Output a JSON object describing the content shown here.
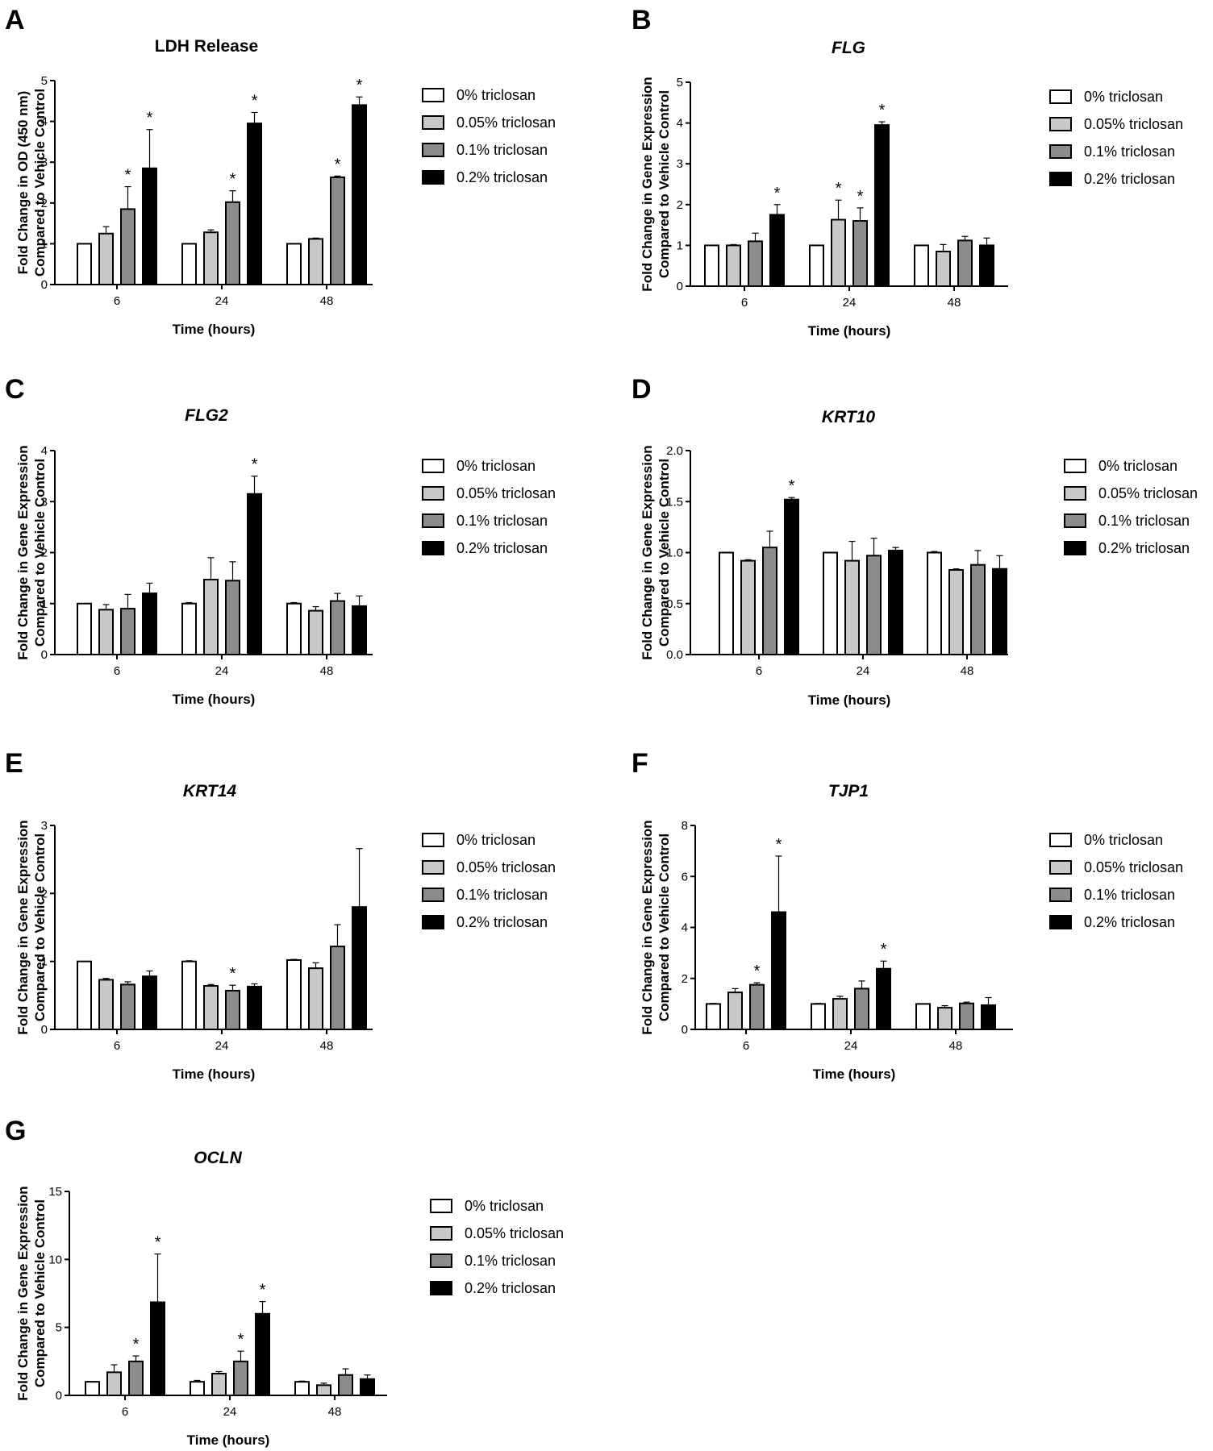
{
  "figure": {
    "legend_labels": [
      "0% triclosan",
      "0.05% triclosan",
      "0.1% triclosan",
      "0.2% triclosan"
    ],
    "series_colors": [
      "#ffffff",
      "#c8c8c8",
      "#8c8c8c",
      "#000000"
    ]
  },
  "chart_data": [
    {
      "panel": "A",
      "type": "bar",
      "title": "LDH Release",
      "title_italic": false,
      "xlabel": "Time (hours)",
      "ylabel": [
        "Fold Change in OD (450 nm)",
        "Compared to Vehicle Control"
      ],
      "categories": [
        "6",
        "24",
        "48"
      ],
      "ylim": [
        0,
        5
      ],
      "yticks": [
        0,
        1,
        2,
        3,
        4,
        5
      ],
      "series": [
        {
          "name": "0% triclosan",
          "values": [
            1.0,
            1.0,
            1.0
          ],
          "errors": [
            0,
            0,
            0
          ],
          "significant": [
            false,
            false,
            false
          ]
        },
        {
          "name": "0.05% triclosan",
          "values": [
            1.25,
            1.28,
            1.12
          ],
          "errors": [
            0.17,
            0.06,
            0.02
          ],
          "significant": [
            false,
            false,
            false
          ]
        },
        {
          "name": "0.1% triclosan",
          "values": [
            1.85,
            2.02,
            2.63
          ],
          "errors": [
            0.55,
            0.28,
            0.03
          ],
          "significant": [
            true,
            true,
            true
          ]
        },
        {
          "name": "0.2% triclosan",
          "values": [
            2.85,
            3.95,
            4.4
          ],
          "errors": [
            0.95,
            0.27,
            0.2
          ],
          "significant": [
            true,
            true,
            true
          ]
        }
      ]
    },
    {
      "panel": "B",
      "type": "bar",
      "title": "FLG",
      "title_italic": true,
      "xlabel": "Time (hours)",
      "ylabel": [
        "Fold Change in Gene Expression",
        "Compared to Vehicle Control"
      ],
      "categories": [
        "6",
        "24",
        "48"
      ],
      "ylim": [
        0,
        5
      ],
      "yticks": [
        0,
        1,
        2,
        3,
        4,
        5
      ],
      "series": [
        {
          "name": "0% triclosan",
          "values": [
            1.0,
            1.0,
            1.0
          ],
          "errors": [
            0,
            0,
            0
          ],
          "significant": [
            false,
            false,
            false
          ]
        },
        {
          "name": "0.05% triclosan",
          "values": [
            1.0,
            1.63,
            0.85
          ],
          "errors": [
            0.02,
            0.48,
            0.17
          ],
          "significant": [
            false,
            true,
            false
          ]
        },
        {
          "name": "0.1% triclosan",
          "values": [
            1.1,
            1.6,
            1.12
          ],
          "errors": [
            0.2,
            0.32,
            0.1
          ],
          "significant": [
            false,
            true,
            false
          ]
        },
        {
          "name": "0.2% triclosan",
          "values": [
            1.75,
            3.95,
            1.0
          ],
          "errors": [
            0.25,
            0.08,
            0.18
          ],
          "significant": [
            true,
            true,
            false
          ]
        }
      ]
    },
    {
      "panel": "C",
      "type": "bar",
      "title": "FLG2",
      "title_italic": true,
      "xlabel": "Time (hours)",
      "ylabel": [
        "Fold Change in Gene Expression",
        "Compared to Vehicle Control"
      ],
      "categories": [
        "6",
        "24",
        "48"
      ],
      "ylim": [
        0,
        4
      ],
      "yticks": [
        0,
        1,
        2,
        3,
        4
      ],
      "series": [
        {
          "name": "0% triclosan",
          "values": [
            1.0,
            1.0,
            1.0
          ],
          "errors": [
            0,
            0.02,
            0.02
          ],
          "significant": [
            false,
            false,
            false
          ]
        },
        {
          "name": "0.05% triclosan",
          "values": [
            0.88,
            1.47,
            0.86
          ],
          "errors": [
            0.1,
            0.43,
            0.08
          ],
          "significant": [
            false,
            false,
            false
          ]
        },
        {
          "name": "0.1% triclosan",
          "values": [
            0.9,
            1.45,
            1.05
          ],
          "errors": [
            0.28,
            0.37,
            0.15
          ],
          "significant": [
            false,
            false,
            false
          ]
        },
        {
          "name": "0.2% triclosan",
          "values": [
            1.2,
            3.15,
            0.95
          ],
          "errors": [
            0.2,
            0.35,
            0.2
          ],
          "significant": [
            false,
            true,
            false
          ]
        }
      ]
    },
    {
      "panel": "D",
      "type": "bar",
      "title": "KRT10",
      "title_italic": true,
      "xlabel": "Time (hours)",
      "ylabel": [
        "Fold Change in Gene Expression",
        "Compared to Vehicle Control"
      ],
      "categories": [
        "6",
        "24",
        "48"
      ],
      "ylim": [
        0,
        2
      ],
      "yticks": [
        0.0,
        0.5,
        1.0,
        1.5,
        2.0
      ],
      "ytick_decimals": 1,
      "series": [
        {
          "name": "0% triclosan",
          "values": [
            1.0,
            1.0,
            1.0
          ],
          "errors": [
            0,
            0,
            0.01
          ],
          "significant": [
            false,
            false,
            false
          ]
        },
        {
          "name": "0.05% triclosan",
          "values": [
            0.92,
            0.92,
            0.83
          ],
          "errors": [
            0.01,
            0.19,
            0.01
          ],
          "significant": [
            false,
            false,
            false
          ]
        },
        {
          "name": "0.1% triclosan",
          "values": [
            1.05,
            0.97,
            0.88
          ],
          "errors": [
            0.16,
            0.17,
            0.14
          ],
          "significant": [
            false,
            false,
            false
          ]
        },
        {
          "name": "0.2% triclosan",
          "values": [
            1.52,
            1.02,
            0.84
          ],
          "errors": [
            0.02,
            0.03,
            0.13
          ],
          "significant": [
            true,
            false,
            false
          ]
        }
      ]
    },
    {
      "panel": "E",
      "type": "bar",
      "title": "KRT14",
      "title_italic": true,
      "xlabel": "Time (hours)",
      "ylabel": [
        "Fold Change in Gene Expression",
        "Compared to Vehicle Control"
      ],
      "categories": [
        "6",
        "24",
        "48"
      ],
      "ylim": [
        0,
        3
      ],
      "yticks": [
        0,
        1,
        2,
        3
      ],
      "series": [
        {
          "name": "0% triclosan",
          "values": [
            1.0,
            1.0,
            1.02
          ],
          "errors": [
            0,
            0.01,
            0.01
          ],
          "significant": [
            false,
            false,
            false
          ]
        },
        {
          "name": "0.05% triclosan",
          "values": [
            0.73,
            0.64,
            0.9
          ],
          "errors": [
            0.02,
            0.02,
            0.08
          ],
          "significant": [
            false,
            false,
            false
          ]
        },
        {
          "name": "0.1% triclosan",
          "values": [
            0.66,
            0.57,
            1.22
          ],
          "errors": [
            0.04,
            0.08,
            0.32
          ],
          "significant": [
            false,
            true,
            false
          ]
        },
        {
          "name": "0.2% triclosan",
          "values": [
            0.78,
            0.63,
            1.8
          ],
          "errors": [
            0.08,
            0.04,
            0.86
          ],
          "significant": [
            false,
            false,
            false
          ]
        }
      ]
    },
    {
      "panel": "F",
      "type": "bar",
      "title": "TJP1",
      "title_italic": true,
      "xlabel": "Time (hours)",
      "ylabel": [
        "Fold Change in Gene Expression",
        "Compared to Vehicle Control"
      ],
      "categories": [
        "6",
        "24",
        "48"
      ],
      "ylim": [
        0,
        8
      ],
      "yticks": [
        0,
        2,
        4,
        6,
        8
      ],
      "series": [
        {
          "name": "0% triclosan",
          "values": [
            1.0,
            1.0,
            1.0
          ],
          "errors": [
            0.02,
            0.02,
            0
          ],
          "significant": [
            false,
            false,
            false
          ]
        },
        {
          "name": "0.05% triclosan",
          "values": [
            1.45,
            1.2,
            0.85
          ],
          "errors": [
            0.15,
            0.1,
            0.08
          ],
          "significant": [
            false,
            false,
            false
          ]
        },
        {
          "name": "0.1% triclosan",
          "values": [
            1.75,
            1.6,
            1.02
          ],
          "errors": [
            0.08,
            0.3,
            0.05
          ],
          "significant": [
            true,
            false,
            false
          ]
        },
        {
          "name": "0.2% triclosan",
          "values": [
            4.6,
            2.38,
            0.95
          ],
          "errors": [
            2.2,
            0.3,
            0.3
          ],
          "significant": [
            true,
            true,
            false
          ]
        }
      ]
    },
    {
      "panel": "G",
      "type": "bar",
      "title": "OCLN",
      "title_italic": true,
      "xlabel": "Time (hours)",
      "ylabel": [
        "Fold Change in Gene Expression",
        "Compared to Vehicle Control"
      ],
      "categories": [
        "6",
        "24",
        "48"
      ],
      "ylim": [
        0,
        15
      ],
      "yticks": [
        0,
        5,
        10,
        15
      ],
      "series": [
        {
          "name": "0% triclosan",
          "values": [
            1.0,
            1.0,
            1.0
          ],
          "errors": [
            0,
            0.1,
            0.05
          ],
          "significant": [
            false,
            false,
            false
          ]
        },
        {
          "name": "0.05% triclosan",
          "values": [
            1.7,
            1.6,
            0.75
          ],
          "errors": [
            0.55,
            0.15,
            0.15
          ],
          "significant": [
            false,
            false,
            false
          ]
        },
        {
          "name": "0.1% triclosan",
          "values": [
            2.5,
            2.5,
            1.5
          ],
          "errors": [
            0.4,
            0.75,
            0.45
          ],
          "significant": [
            true,
            true,
            false
          ]
        },
        {
          "name": "0.2% triclosan",
          "values": [
            6.85,
            6.0,
            1.2
          ],
          "errors": [
            3.55,
            0.9,
            0.3
          ],
          "significant": [
            true,
            true,
            false
          ]
        }
      ]
    }
  ]
}
